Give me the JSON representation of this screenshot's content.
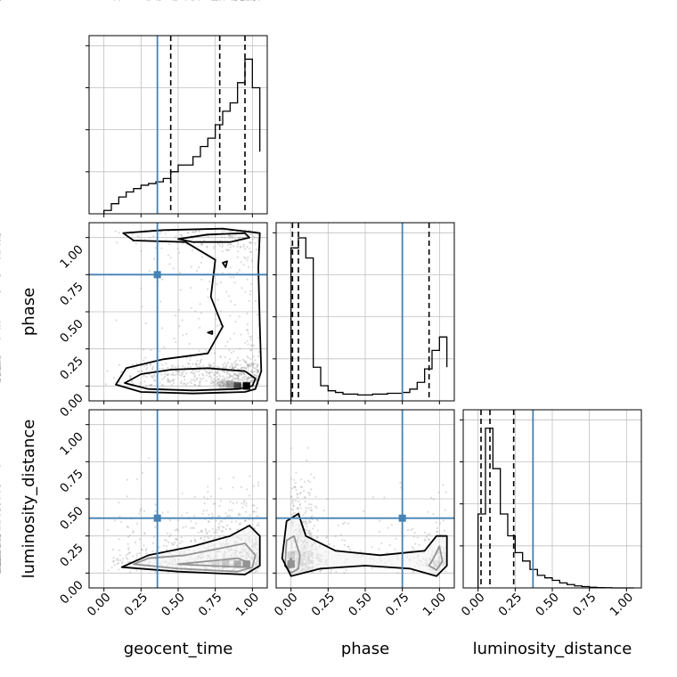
{
  "chart_data": {
    "type": "corner",
    "parameters": [
      "geocent_time",
      "phase",
      "luminosity_distance"
    ],
    "axis_range": [
      -0.1,
      1.1
    ],
    "ticks": [
      0.0,
      0.25,
      0.5,
      0.75,
      1.0
    ],
    "tick_labels": [
      "0.00",
      "0.25",
      "0.50",
      "0.75",
      "1.00"
    ],
    "truths": {
      "geocent_time": 0.36,
      "phase": 0.75,
      "luminosity_distance": 0.37
    },
    "colors": {
      "truth": "#4682b4",
      "hist": "#000000",
      "grid": "#c0c0c0",
      "points": "#9a9a9a"
    },
    "grid": true,
    "histograms": [
      {
        "parameter": "geocent_time",
        "ymax": 1.0,
        "quantiles": [
          0.45,
          0.78,
          0.95
        ],
        "bin_edges": [
          0.0,
          0.05,
          0.1,
          0.15,
          0.2,
          0.25,
          0.3,
          0.35,
          0.4,
          0.45,
          0.5,
          0.55,
          0.6,
          0.65,
          0.7,
          0.75,
          0.8,
          0.85,
          0.9,
          0.95,
          1.0,
          1.05
        ],
        "counts": [
          0.02,
          0.06,
          0.1,
          0.13,
          0.15,
          0.17,
          0.18,
          0.19,
          0.21,
          0.25,
          0.29,
          0.29,
          0.34,
          0.4,
          0.45,
          0.53,
          0.61,
          0.66,
          0.78,
          0.92,
          0.75,
          0.37
        ]
      },
      {
        "parameter": "phase",
        "ymax": 1.0,
        "quantiles": [
          0.01,
          0.05,
          0.93
        ],
        "bin_edges": [
          0.0,
          0.05,
          0.1,
          0.15,
          0.2,
          0.25,
          0.3,
          0.35,
          0.4,
          0.45,
          0.5,
          0.55,
          0.6,
          0.65,
          0.7,
          0.75,
          0.8,
          0.85,
          0.9,
          0.95,
          1.0,
          1.05
        ],
        "counts": [
          0.91,
          0.97,
          0.85,
          0.2,
          0.09,
          0.06,
          0.05,
          0.04,
          0.04,
          0.035,
          0.035,
          0.04,
          0.04,
          0.045,
          0.045,
          0.05,
          0.07,
          0.11,
          0.19,
          0.3,
          0.38,
          0.2
        ]
      },
      {
        "parameter": "luminosity_distance",
        "ymax": 1.0,
        "quantiles": [
          0.02,
          0.08,
          0.24
        ],
        "bin_edges": [
          0.0,
          0.05,
          0.1,
          0.15,
          0.2,
          0.25,
          0.3,
          0.35,
          0.4,
          0.45,
          0.5,
          0.55,
          0.6,
          0.65,
          0.7,
          0.75,
          0.8,
          0.85,
          0.9,
          0.95,
          1.0,
          1.05
        ],
        "counts": [
          0.44,
          0.95,
          0.71,
          0.44,
          0.31,
          0.21,
          0.16,
          0.11,
          0.075,
          0.06,
          0.045,
          0.03,
          0.02,
          0.012,
          0.008,
          0.004,
          0.002,
          0.001,
          0.0,
          0.0,
          0.0,
          0.0
        ]
      }
    ],
    "panels_2d": [
      {
        "x": "geocent_time",
        "y": "phase",
        "contours": [
          [
            [
              0.14,
              0.02
            ],
            [
              0.3,
              -0.02
            ],
            [
              0.6,
              -0.03
            ],
            [
              0.9,
              -0.02
            ],
            [
              1.0,
              0.0
            ],
            [
              1.02,
              0.05
            ],
            [
              0.95,
              0.1
            ],
            [
              0.7,
              0.12
            ],
            [
              0.45,
              0.11
            ],
            [
              0.25,
              0.08
            ],
            [
              0.14,
              0.02
            ]
          ],
          [
            [
              0.08,
              0.01
            ],
            [
              0.25,
              -0.04
            ],
            [
              0.6,
              -0.05
            ],
            [
              0.95,
              -0.04
            ],
            [
              1.02,
              -0.02
            ],
            [
              1.06,
              0.1
            ],
            [
              1.05,
              0.4
            ],
            [
              1.04,
              0.8
            ],
            [
              1.05,
              1.03
            ],
            [
              0.8,
              1.06
            ],
            [
              0.4,
              1.05
            ],
            [
              0.13,
              1.03
            ],
            [
              0.2,
              0.98
            ],
            [
              0.55,
              0.97
            ],
            [
              0.75,
              0.85
            ],
            [
              0.72,
              0.6
            ],
            [
              0.8,
              0.4
            ],
            [
              0.7,
              0.22
            ],
            [
              0.4,
              0.18
            ],
            [
              0.15,
              0.12
            ],
            [
              0.08,
              0.01
            ]
          ],
          [
            [
              0.5,
              0.99
            ],
            [
              0.7,
              1.02
            ],
            [
              0.95,
              1.03
            ],
            [
              0.98,
              1.0
            ],
            [
              0.85,
              0.97
            ],
            [
              0.6,
              0.97
            ],
            [
              0.5,
              0.99
            ]
          ],
          [
            [
              0.8,
              0.83
            ],
            [
              0.83,
              0.84
            ],
            [
              0.82,
              0.8
            ],
            [
              0.8,
              0.83
            ]
          ],
          [
            [
              0.7,
              0.36
            ],
            [
              0.73,
              0.37
            ],
            [
              0.73,
              0.35
            ],
            [
              0.7,
              0.36
            ]
          ]
        ],
        "density_peaks": [
          [
            0.96,
            0.0,
            1.0
          ],
          [
            0.9,
            0.0,
            0.7
          ],
          [
            0.85,
            0.01,
            0.35
          ],
          [
            0.8,
            0.01,
            0.18
          ]
        ]
      },
      {
        "x": "geocent_time",
        "y": "luminosity_distance",
        "contours": [
          [
            [
              0.5,
              0.06
            ],
            [
              0.7,
              0.05
            ],
            [
              0.95,
              0.04
            ],
            [
              0.98,
              0.07
            ],
            [
              0.9,
              0.1
            ],
            [
              0.7,
              0.08
            ],
            [
              0.5,
              0.06
            ]
          ],
          [
            [
              0.2,
              0.06
            ],
            [
              0.5,
              0.03
            ],
            [
              0.9,
              0.01
            ],
            [
              1.0,
              0.04
            ],
            [
              1.02,
              0.12
            ],
            [
              0.95,
              0.2
            ],
            [
              0.8,
              0.17
            ],
            [
              0.55,
              0.12
            ],
            [
              0.3,
              0.1
            ],
            [
              0.2,
              0.06
            ]
          ],
          [
            [
              0.12,
              0.04
            ],
            [
              0.5,
              0.01
            ],
            [
              0.95,
              -0.01
            ],
            [
              1.05,
              0.05
            ],
            [
              1.05,
              0.25
            ],
            [
              0.98,
              0.32
            ],
            [
              0.85,
              0.25
            ],
            [
              0.6,
              0.18
            ],
            [
              0.3,
              0.12
            ],
            [
              0.12,
              0.04
            ]
          ]
        ],
        "density_peaks": [
          [
            0.96,
            0.06,
            1.0
          ],
          [
            0.9,
            0.06,
            0.7
          ],
          [
            0.82,
            0.06,
            0.45
          ],
          [
            0.75,
            0.06,
            0.25
          ]
        ]
      },
      {
        "x": "phase",
        "y": "luminosity_distance",
        "contours": [
          [
            [
              -0.02,
              0.03
            ],
            [
              0.02,
              0.05
            ],
            [
              0.0,
              0.1
            ],
            [
              -0.02,
              0.07
            ],
            [
              -0.02,
              0.03
            ]
          ],
          [
            [
              -0.04,
              0.05
            ],
            [
              0.0,
              0.0
            ],
            [
              0.05,
              0.03
            ],
            [
              0.06,
              0.12
            ],
            [
              0.02,
              0.25
            ],
            [
              -0.03,
              0.22
            ],
            [
              -0.04,
              0.05
            ]
          ],
          [
            [
              0.93,
              0.05
            ],
            [
              0.98,
              0.02
            ],
            [
              1.02,
              0.08
            ],
            [
              1.0,
              0.18
            ],
            [
              0.96,
              0.1
            ],
            [
              0.93,
              0.05
            ]
          ],
          [
            [
              -0.06,
              0.1
            ],
            [
              0.0,
              -0.02
            ],
            [
              0.2,
              0.03
            ],
            [
              0.5,
              0.05
            ],
            [
              0.8,
              0.03
            ],
            [
              0.98,
              -0.02
            ],
            [
              1.05,
              0.05
            ],
            [
              1.05,
              0.25
            ],
            [
              0.98,
              0.25
            ],
            [
              0.9,
              0.15
            ],
            [
              0.6,
              0.12
            ],
            [
              0.3,
              0.15
            ],
            [
              0.1,
              0.25
            ],
            [
              0.05,
              0.4
            ],
            [
              -0.03,
              0.35
            ],
            [
              -0.06,
              0.1
            ]
          ]
        ],
        "density_peaks": [
          [
            0.0,
            0.06,
            1.0
          ],
          [
            0.0,
            0.12,
            0.35
          ],
          [
            0.98,
            0.06,
            0.2
          ]
        ]
      }
    ]
  }
}
